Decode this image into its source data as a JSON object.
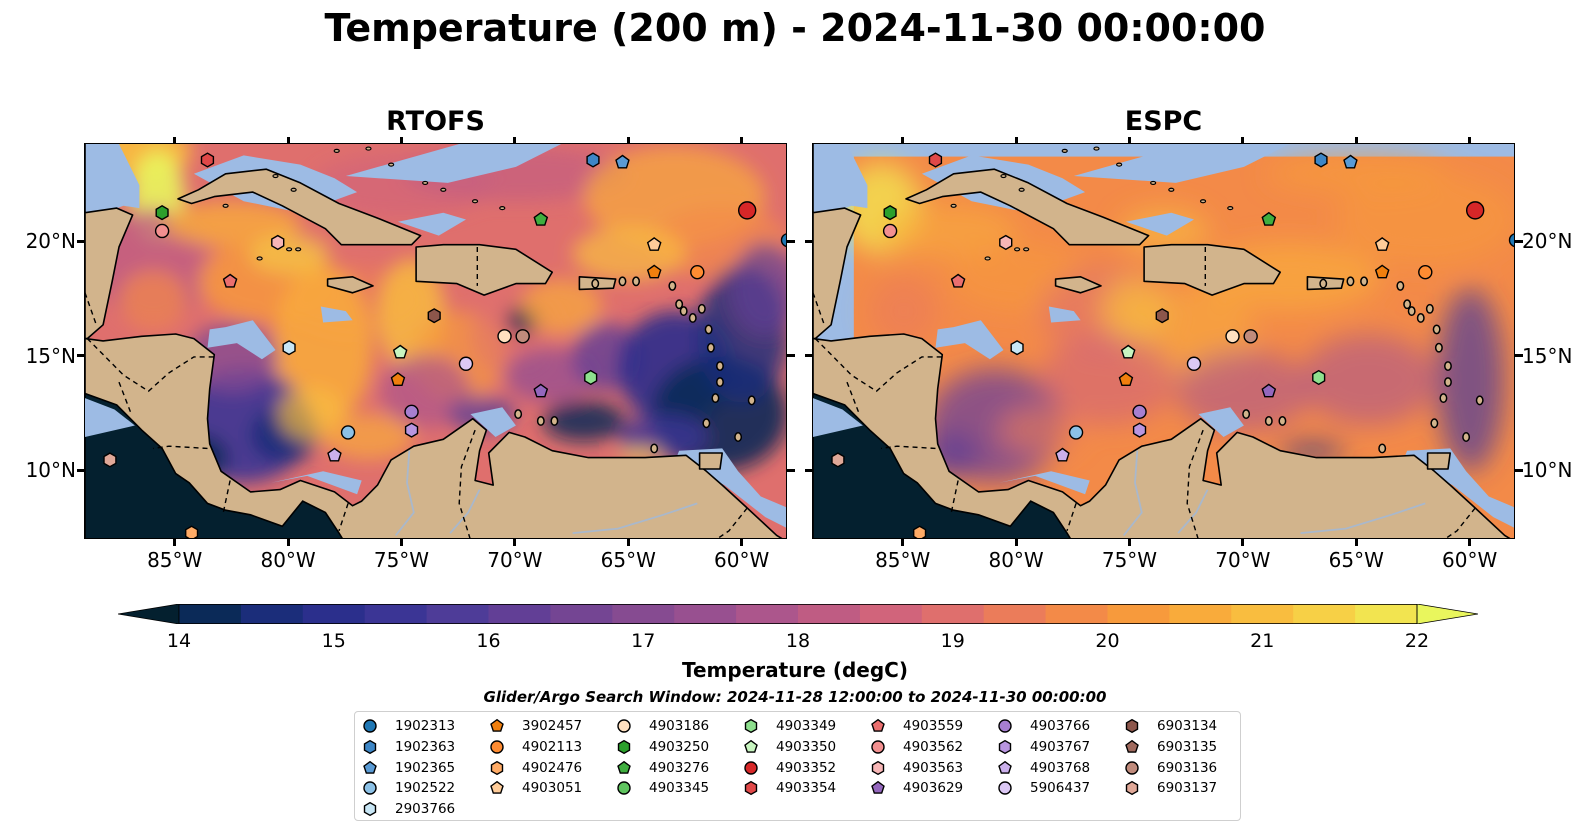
{
  "title": "Temperature (200 m) - 2024-11-30 00:00:00",
  "panels": [
    {
      "name": "RTOFS",
      "style": "rtofs"
    },
    {
      "name": "ESPC",
      "style": "espc"
    }
  ],
  "map_extent": {
    "lon_min": -89,
    "lon_max": -58,
    "lat_min": 7,
    "lat_max": 24.3
  },
  "lon_ticks": [
    "85°W",
    "80°W",
    "75°W",
    "70°W",
    "65°W",
    "60°W"
  ],
  "lat_ticks": [
    "20°N",
    "15°N",
    "10°N"
  ],
  "lon_tick_values": [
    -85,
    -80,
    -75,
    -70,
    -65,
    -60
  ],
  "lat_tick_values": [
    20,
    15,
    10
  ],
  "colorbar": {
    "label": "Temperature (degC)",
    "ticks": [
      "14",
      "15",
      "16",
      "17",
      "18",
      "19",
      "20",
      "21",
      "22"
    ],
    "min": 14,
    "max": 22,
    "extend": "both",
    "colors": [
      "#04202f",
      "#0b2a58",
      "#1b2d7a",
      "#2b2f8c",
      "#3b3595",
      "#4e3c98",
      "#623f96",
      "#744593",
      "#864b91",
      "#985090",
      "#ac568c",
      "#bf5c83",
      "#d1647b",
      "#df6f6d",
      "#eb7c5a",
      "#f38a48",
      "#f79a3c",
      "#f9ab3b",
      "#f9bd3f",
      "#f7d046",
      "#f2e450",
      "#e9f65d"
    ]
  },
  "colors": {
    "land": "#d2b48c",
    "shelf": "#9dbbe4",
    "coast": "#000000",
    "river": "#a9b8cc"
  },
  "search_window": "Glider/Argo Search Window: 2024-11-28 12:00:00 to 2024-11-30 00:00:00",
  "legend": [
    {
      "id": "1902313",
      "marker": "circle",
      "color": "#1f77b4"
    },
    {
      "id": "1902363",
      "marker": "hexagon",
      "color": "#3d86c6"
    },
    {
      "id": "1902365",
      "marker": "pentagon",
      "color": "#5a9bd5"
    },
    {
      "id": "1902522",
      "marker": "circle",
      "color": "#8cc1e6"
    },
    {
      "id": "2903766",
      "marker": "hexagon",
      "color": "#c8e6f5"
    },
    {
      "id": "3902457",
      "marker": "pentagon",
      "color": "#f07f0e"
    },
    {
      "id": "4902113",
      "marker": "circle",
      "color": "#ff8c32"
    },
    {
      "id": "4902476",
      "marker": "hexagon",
      "color": "#ffab66"
    },
    {
      "id": "4903051",
      "marker": "pentagon",
      "color": "#ffcc99"
    },
    {
      "id": "4903186",
      "marker": "circle",
      "color": "#ffe0c0"
    },
    {
      "id": "4903250",
      "marker": "hexagon",
      "color": "#2ca02c"
    },
    {
      "id": "4903276",
      "marker": "pentagon",
      "color": "#3fae3f"
    },
    {
      "id": "4903345",
      "marker": "circle",
      "color": "#5fc45f"
    },
    {
      "id": "4903349",
      "marker": "hexagon",
      "color": "#8ee08e"
    },
    {
      "id": "4903350",
      "marker": "pentagon",
      "color": "#c8f5c0"
    },
    {
      "id": "4903352",
      "marker": "circle",
      "color": "#d62728"
    },
    {
      "id": "4903354",
      "marker": "hexagon",
      "color": "#e04848"
    },
    {
      "id": "4903559",
      "marker": "pentagon",
      "color": "#ea6f6f"
    },
    {
      "id": "4903562",
      "marker": "circle",
      "color": "#f29090"
    },
    {
      "id": "4903563",
      "marker": "hexagon",
      "color": "#f7b6b6"
    },
    {
      "id": "4903629",
      "marker": "pentagon",
      "color": "#9467bd"
    },
    {
      "id": "4903766",
      "marker": "circle",
      "color": "#a77fd0"
    },
    {
      "id": "4903767",
      "marker": "hexagon",
      "color": "#b996e0"
    },
    {
      "id": "4903768",
      "marker": "pentagon",
      "color": "#cbb0ec"
    },
    {
      "id": "5906437",
      "marker": "circle",
      "color": "#dcc8f5"
    },
    {
      "id": "6903134",
      "marker": "hexagon",
      "color": "#8c564b"
    },
    {
      "id": "6903135",
      "marker": "pentagon",
      "color": "#a06a5e"
    },
    {
      "id": "6903136",
      "marker": "circle",
      "color": "#c08b7c"
    },
    {
      "id": "6903137",
      "marker": "hexagon",
      "color": "#e0a898"
    }
  ],
  "observations": [
    {
      "id": "6903137",
      "lon": -87.9,
      "lat": 10.5
    },
    {
      "id": "4902476",
      "lon": -84.3,
      "lat": 7.3
    },
    {
      "id": "4903250",
      "lon": -85.6,
      "lat": 21.3
    },
    {
      "id": "4903562",
      "lon": -85.6,
      "lat": 20.5
    },
    {
      "id": "4903354",
      "lon": -83.6,
      "lat": 23.6
    },
    {
      "id": "4903559",
      "lon": -82.6,
      "lat": 18.3
    },
    {
      "id": "4903563",
      "lon": -80.5,
      "lat": 20.0
    },
    {
      "id": "2903766",
      "lon": -80.0,
      "lat": 15.4
    },
    {
      "id": "1902522",
      "lon": -77.4,
      "lat": 11.7
    },
    {
      "id": "4903768",
      "lon": -78.0,
      "lat": 10.7
    },
    {
      "id": "4903350",
      "lon": -75.1,
      "lat": 15.2
    },
    {
      "id": "3902457",
      "lon": -75.2,
      "lat": 14.0
    },
    {
      "id": "4903766",
      "lon": -74.6,
      "lat": 12.6
    },
    {
      "id": "4903767",
      "lon": -74.6,
      "lat": 11.8
    },
    {
      "id": "6903134",
      "lon": -73.6,
      "lat": 16.8
    },
    {
      "id": "5906437",
      "lon": -72.2,
      "lat": 14.7
    },
    {
      "id": "4903186",
      "lon": -70.5,
      "lat": 15.9
    },
    {
      "id": "6903136",
      "lon": -69.7,
      "lat": 15.9
    },
    {
      "id": "4903629",
      "lon": -68.9,
      "lat": 13.5
    },
    {
      "id": "4903276",
      "lon": -68.9,
      "lat": 21.0
    },
    {
      "id": "4903349",
      "lon": -66.7,
      "lat": 14.1
    },
    {
      "id": "1902363",
      "lon": -66.6,
      "lat": 23.6
    },
    {
      "id": "1902365",
      "lon": -65.3,
      "lat": 23.5
    },
    {
      "id": "4903051",
      "lon": -63.9,
      "lat": 19.9
    },
    {
      "id": "3902457",
      "lon": -63.9,
      "lat": 18.7
    },
    {
      "id": "4902113",
      "lon": -62.0,
      "lat": 18.7
    },
    {
      "id": "4903352",
      "lon": -59.8,
      "lat": 21.4
    },
    {
      "id": "1902313",
      "lon": -58.0,
      "lat": 20.1
    }
  ]
}
